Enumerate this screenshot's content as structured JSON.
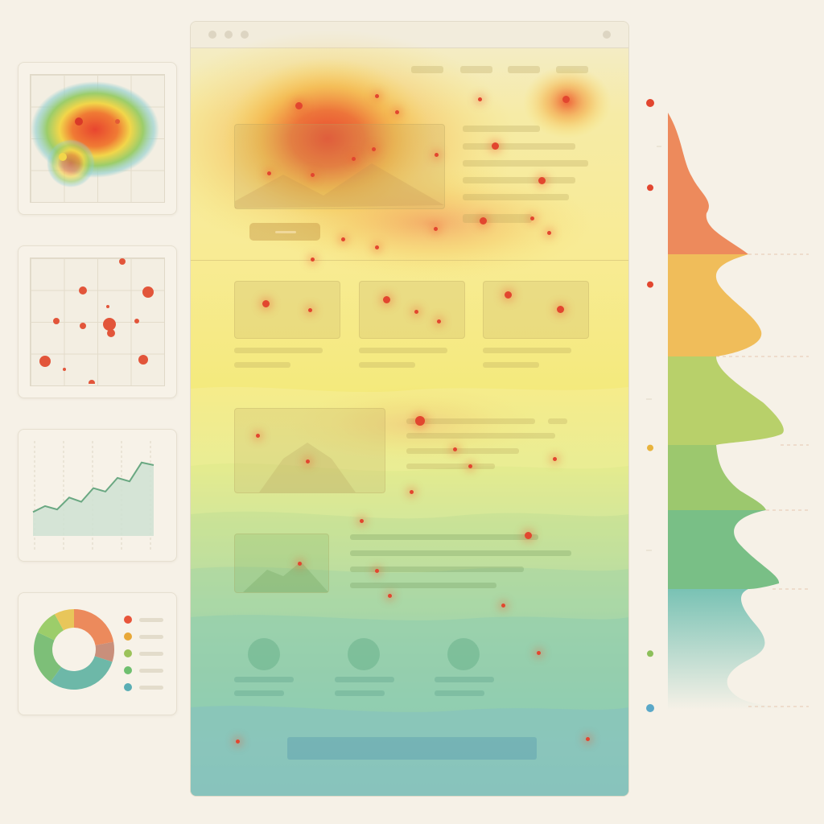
{
  "colors": {
    "background": "#f6f1e7",
    "hot": "#e8452f",
    "warm": "#f2a23c",
    "mild": "#f2d94a",
    "cool": "#9ccd6a",
    "cold": "#7cc3c3"
  },
  "thumbnails": [
    {
      "name": "heatmap-thumbnail",
      "icon": "heatmap-icon"
    },
    {
      "name": "scatter-thumbnail",
      "icon": "scatter-icon"
    },
    {
      "name": "line-chart-thumbnail",
      "icon": "line-chart-icon"
    },
    {
      "name": "donut-chart-thumbnail",
      "icon": "donut-chart-icon"
    }
  ],
  "line_chart": {
    "values": [
      28,
      35,
      31,
      45,
      40,
      56,
      52,
      68,
      64,
      86,
      83
    ]
  },
  "donut_chart": {
    "segments": [
      {
        "value": 22,
        "color": "#ec8a5c"
      },
      {
        "value": 8,
        "color": "#c98f7b"
      },
      {
        "value": 30,
        "color": "#6db8a8"
      },
      {
        "value": 22,
        "color": "#7dbf78"
      },
      {
        "value": 10,
        "color": "#9ccd6a"
      },
      {
        "value": 8,
        "color": "#e8c65a"
      }
    ],
    "legend_colors": [
      "#e8553a",
      "#e8a838",
      "#9cc25a",
      "#6fbf6f",
      "#5aaeb4"
    ]
  },
  "scroll_depth": {
    "markers": [
      0,
      0.14,
      0.3,
      0.57,
      0.91,
      1.0
    ],
    "marker_colors": [
      "#e2462f",
      "#e2462f",
      "#e2462f",
      "#e8b33c",
      "#8cbf5a",
      "#5aa8c8"
    ]
  }
}
